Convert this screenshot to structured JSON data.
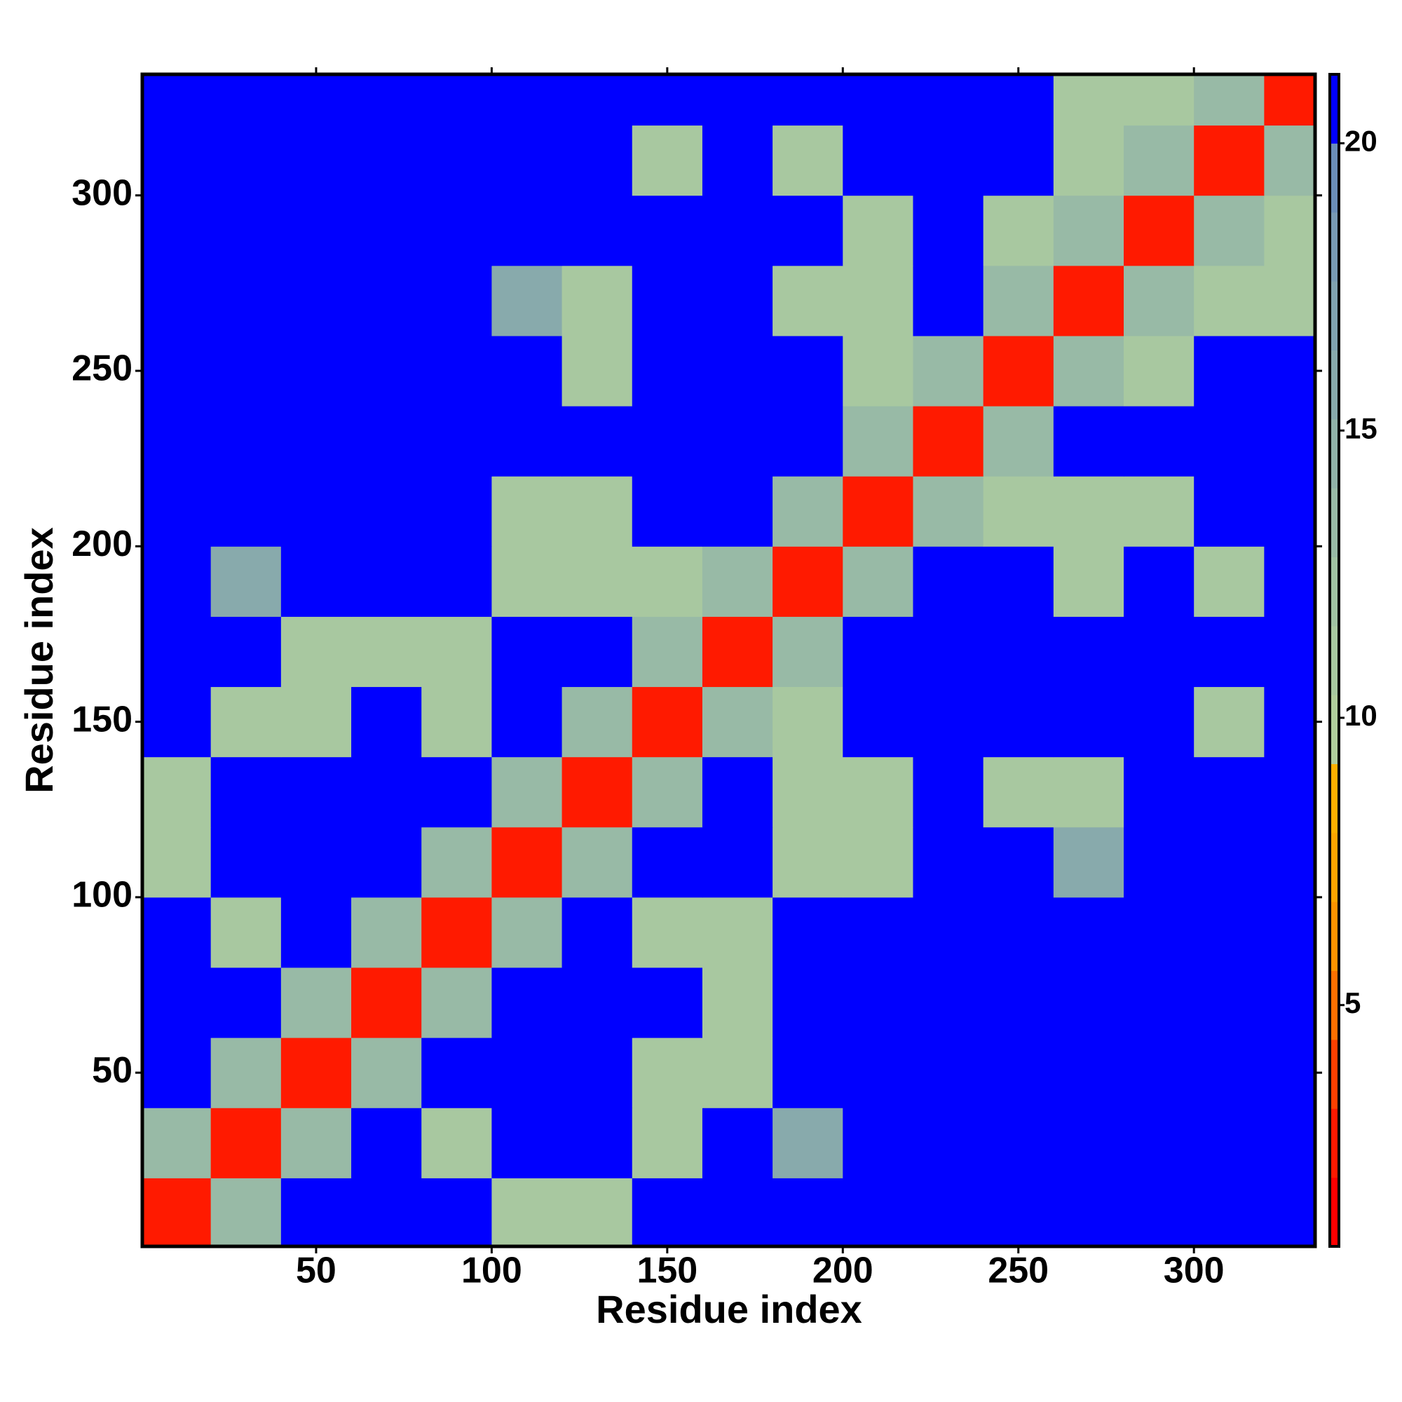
{
  "chart_data": {
    "type": "heatmap",
    "xlabel": "Residue index",
    "ylabel": "Residue index",
    "x": [
      10,
      30,
      50,
      70,
      90,
      110,
      130,
      150,
      170,
      190,
      210,
      230,
      250,
      270,
      290,
      310,
      330
    ],
    "y": [
      10,
      30,
      50,
      70,
      90,
      110,
      130,
      150,
      170,
      190,
      210,
      230,
      250,
      270,
      290,
      310,
      330
    ],
    "z": [
      [
        3,
        13,
        21,
        21,
        21,
        11,
        11,
        21,
        21,
        21,
        21,
        21,
        21,
        21,
        21,
        21,
        21
      ],
      [
        13,
        3,
        13,
        21,
        11,
        21,
        21,
        11,
        21,
        16,
        21,
        21,
        21,
        21,
        21,
        21,
        21
      ],
      [
        21,
        13,
        3,
        13,
        21,
        21,
        21,
        11,
        11,
        21,
        21,
        21,
        21,
        21,
        21,
        21,
        21
      ],
      [
        21,
        21,
        13,
        3,
        13,
        21,
        21,
        21,
        11,
        21,
        21,
        21,
        21,
        21,
        21,
        21,
        21
      ],
      [
        21,
        11,
        21,
        13,
        3,
        13,
        21,
        11,
        11,
        21,
        21,
        21,
        21,
        21,
        21,
        21,
        21
      ],
      [
        11,
        21,
        21,
        21,
        13,
        3,
        13,
        21,
        21,
        11,
        11,
        21,
        21,
        16,
        21,
        21,
        21
      ],
      [
        11,
        21,
        21,
        21,
        21,
        13,
        3,
        13,
        21,
        11,
        11,
        21,
        11,
        11,
        21,
        21,
        21
      ],
      [
        21,
        11,
        11,
        21,
        11,
        21,
        13,
        3,
        13,
        11,
        21,
        21,
        21,
        21,
        21,
        11,
        21
      ],
      [
        21,
        21,
        11,
        11,
        11,
        21,
        21,
        13,
        3,
        13,
        21,
        21,
        21,
        21,
        21,
        21,
        21
      ],
      [
        21,
        16,
        21,
        21,
        21,
        11,
        11,
        11,
        13,
        3,
        13,
        21,
        21,
        11,
        21,
        11,
        21
      ],
      [
        21,
        21,
        21,
        21,
        21,
        11,
        11,
        21,
        21,
        13,
        3,
        13,
        11,
        11,
        11,
        21,
        21
      ],
      [
        21,
        21,
        21,
        21,
        21,
        21,
        21,
        21,
        21,
        21,
        13,
        3,
        13,
        21,
        21,
        21,
        21
      ],
      [
        21,
        21,
        21,
        21,
        21,
        21,
        11,
        21,
        21,
        21,
        11,
        13,
        3,
        13,
        11,
        21,
        21
      ],
      [
        21,
        21,
        21,
        21,
        21,
        16,
        11,
        21,
        21,
        11,
        11,
        21,
        13,
        3,
        13,
        11,
        11
      ],
      [
        21,
        21,
        21,
        21,
        21,
        21,
        21,
        21,
        21,
        21,
        11,
        21,
        11,
        13,
        3,
        13,
        11
      ],
      [
        21,
        21,
        21,
        21,
        21,
        21,
        21,
        11,
        21,
        11,
        21,
        21,
        21,
        11,
        13,
        3,
        13
      ],
      [
        21,
        21,
        21,
        21,
        21,
        21,
        21,
        21,
        21,
        21,
        21,
        21,
        21,
        11,
        11,
        13,
        3
      ]
    ],
    "xlim": [
      0.5,
      334.5
    ],
    "ylim": [
      0.5,
      334.5
    ],
    "xticks": [
      50,
      100,
      150,
      200,
      250,
      300
    ],
    "yticks": [
      50,
      100,
      150,
      200,
      250,
      300
    ],
    "zlim": [
      0.8,
      21.2
    ],
    "zticks": [
      5,
      10,
      15,
      20
    ],
    "colorscale": [
      "#ff0000",
      "#ff1a00",
      "#ff4000",
      "#ff7000",
      "#ff9400",
      "#ffa500",
      "#ffb000",
      "#b0cc9c",
      "#a8c8a0",
      "#a0c2a2",
      "#98baa6",
      "#90b2a8",
      "#88aaac",
      "#80a2b0",
      "#789ab4",
      "#6a8eb8",
      "#0000ff"
    ]
  }
}
